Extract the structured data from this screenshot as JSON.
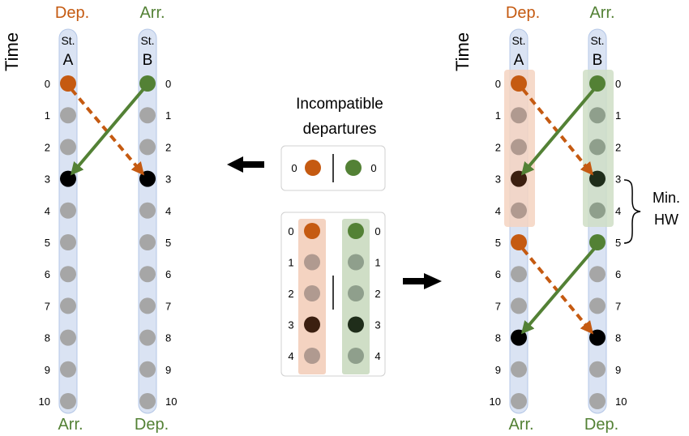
{
  "labels": {
    "time": "Time",
    "dep": "Dep.",
    "arr": "Arr.",
    "st": "St.",
    "station_a": "A",
    "station_b": "B",
    "caption_line1": "Incompatible",
    "caption_line2": "departures",
    "min_hw_line1": "Min.",
    "min_hw_line2": "HW"
  },
  "time_ticks": [
    "0",
    "1",
    "2",
    "3",
    "4",
    "5",
    "6",
    "7",
    "8",
    "9",
    "10"
  ],
  "legend_top": {
    "left_value": "0",
    "right_value": "0"
  },
  "legend_bottom": {
    "ticks": [
      "0",
      "1",
      "2",
      "3",
      "4"
    ]
  },
  "colors": {
    "orange": "#c55a11",
    "green": "#538135",
    "gray": "#a6a6a6",
    "black": "#000000",
    "rail_fill": "#dae3f3",
    "orange_band": "#f4d3c1",
    "green_band": "#cfdec6",
    "orange_shaded": [
      "#c55a11",
      "#b09a90",
      "#b09a90",
      "#3b1f10",
      "#b09a90"
    ],
    "green_shaded": [
      "#538135",
      "#8f9f8c",
      "#8f9f8c",
      "#1f2d1a",
      "#8f9f8c"
    ]
  }
}
